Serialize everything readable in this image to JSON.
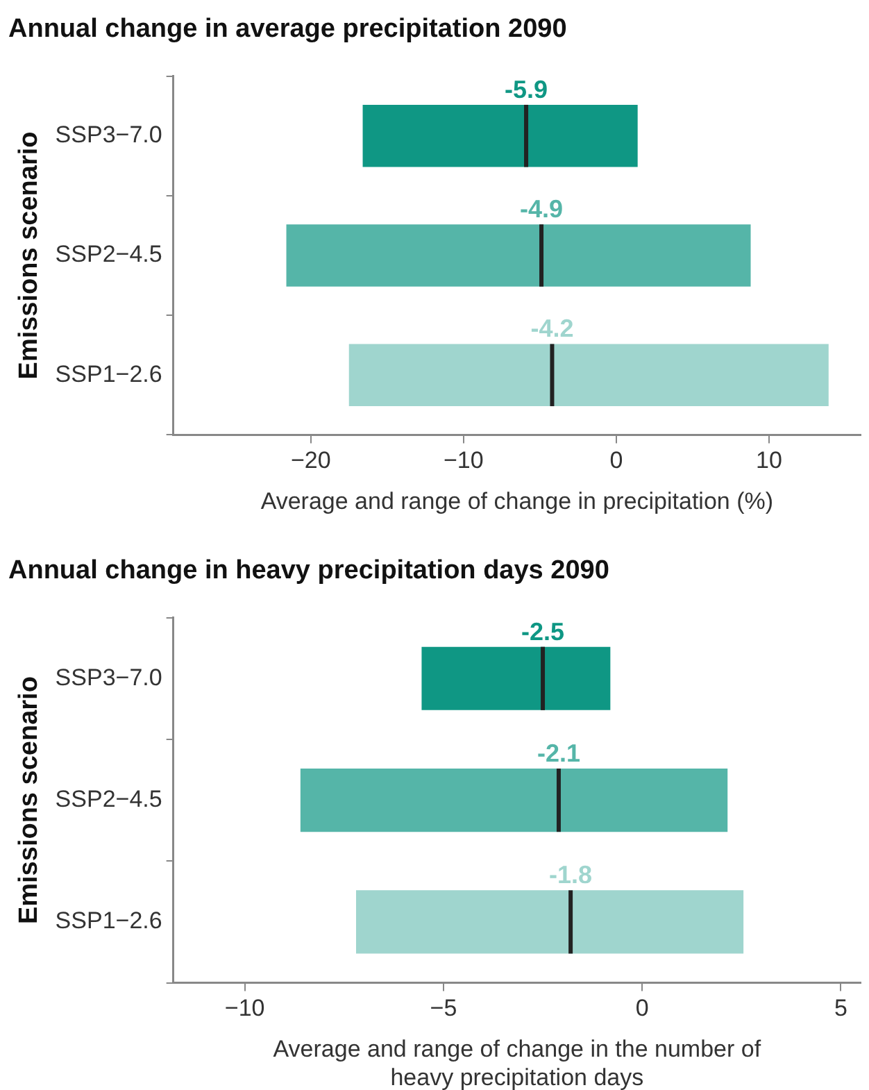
{
  "chart_data": [
    {
      "type": "box",
      "orientation": "horizontal",
      "title": "Annual change in average precipitation 2090",
      "xlabel": "Average and range of change in precipitation (%)",
      "ylabel": "Emissions scenario",
      "categories": [
        "SSP3−7.0",
        "SSP2−4.5",
        "SSP1−2.6"
      ],
      "xlim": [
        -29,
        16
      ],
      "xticks": [
        {
          "value": -20,
          "label": "−20"
        },
        {
          "value": -10,
          "label": "−10"
        },
        0,
        10
      ],
      "grid": false,
      "legend": false,
      "series": [
        {
          "colors": [
            "#0f9784",
            "#55b5a8",
            "#9fd5ce"
          ],
          "boxes": [
            {
              "low": -16.6,
              "q1": -16.6,
              "median": -5.9,
              "q3": 1.4,
              "high": 1.4
            },
            {
              "low": -21.6,
              "q1": -21.6,
              "median": -4.9,
              "q3": 8.8,
              "high": 8.8
            },
            {
              "low": -17.5,
              "q1": -17.5,
              "median": -4.2,
              "q3": 13.9,
              "high": 13.9
            }
          ]
        }
      ],
      "annotations": [
        {
          "text": "-5.9",
          "x": -5.9,
          "y": "SSP3−7.0"
        },
        {
          "text": "-4.9",
          "x": -4.9,
          "y": "SSP2−4.5"
        },
        {
          "text": "-4.2",
          "x": -4.2,
          "y": "SSP1−2.6"
        }
      ]
    },
    {
      "type": "box",
      "orientation": "horizontal",
      "title": "Annual change in heavy precipitation days 2090",
      "xlabel": "Average and range of change in the number of heavy precipitation days",
      "ylabel": "Emissions scenario",
      "categories": [
        "SSP3−7.0",
        "SSP2−4.5",
        "SSP1−2.6"
      ],
      "xlim": [
        -11.8,
        5.5
      ],
      "xticks": [
        {
          "value": -10,
          "label": "−10"
        },
        {
          "value": -5,
          "label": "−5"
        },
        0,
        5
      ],
      "grid": false,
      "legend": false,
      "series": [
        {
          "colors": [
            "#0f9784",
            "#55b5a8",
            "#9fd5ce"
          ],
          "boxes": [
            {
              "low": -5.55,
              "q1": -5.55,
              "median": -2.5,
              "q3": -0.8,
              "high": -0.8
            },
            {
              "low": -8.6,
              "q1": -8.6,
              "median": -2.1,
              "q3": 2.15,
              "high": 2.15
            },
            {
              "low": -7.2,
              "q1": -7.2,
              "median": -1.8,
              "q3": 2.55,
              "high": 2.55
            }
          ]
        }
      ],
      "annotations": [
        {
          "text": "-2.5",
          "x": -2.5,
          "y": "SSP3−7.0"
        },
        {
          "text": "-2.1",
          "x": -2.1,
          "y": "SSP2−4.5"
        },
        {
          "text": "-1.8",
          "x": -1.8,
          "y": "SSP1−2.6"
        }
      ]
    }
  ]
}
